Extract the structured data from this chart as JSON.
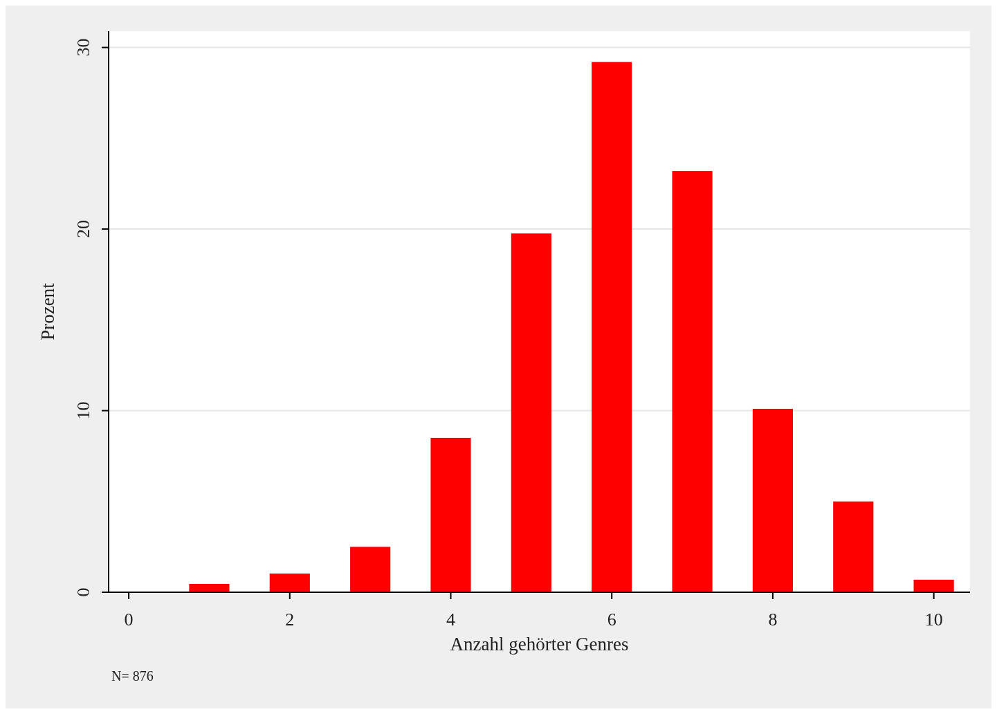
{
  "chart_data": {
    "type": "bar",
    "xlabel": "Anzahl gehörter Genres",
    "ylabel": "Prozent",
    "x": [
      1,
      2,
      3,
      4,
      5,
      6,
      7,
      8,
      9,
      10
    ],
    "values": [
      0.46,
      1.03,
      2.5,
      8.5,
      19.76,
      29.2,
      23.2,
      10.1,
      5.0,
      0.69
    ],
    "color": "#ff0000",
    "xlim": [
      -0.25,
      10.45
    ],
    "xticks": [
      0,
      2,
      4,
      6,
      8,
      10
    ],
    "ylim": [
      0,
      30.9
    ],
    "yticks": [
      0,
      10,
      20,
      30
    ],
    "grid": "y",
    "annotations": [
      "N= 876"
    ]
  }
}
